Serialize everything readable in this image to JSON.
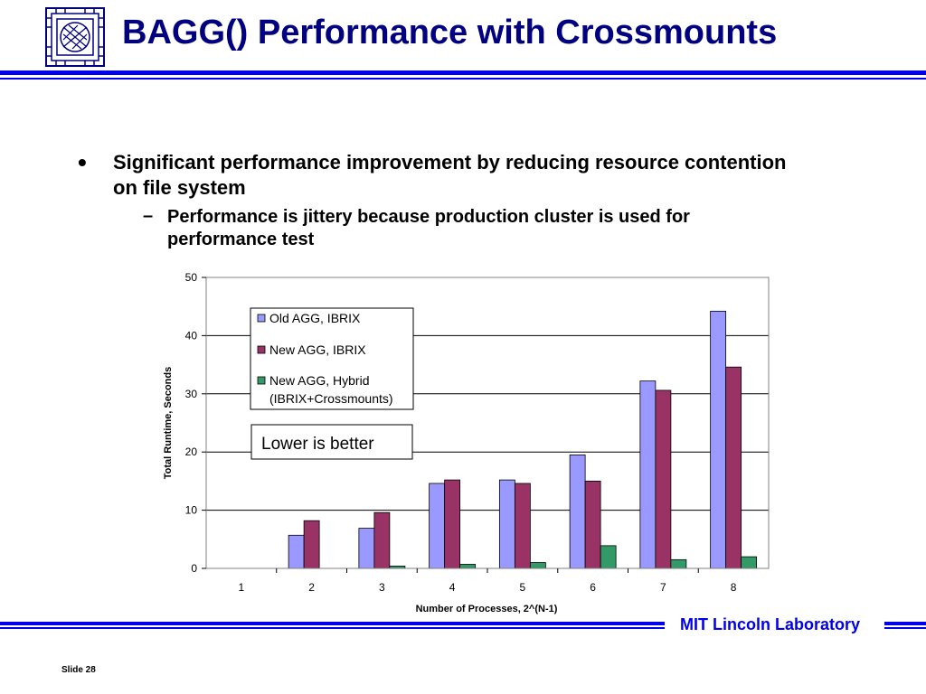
{
  "slide": {
    "title": "BAGG() Performance with Crossmounts",
    "footer_lab": "MIT Lincoln Laboratory",
    "slide_number": "Slide 28",
    "colors": {
      "title": "#000080",
      "rule": "#0000ee"
    }
  },
  "bullets": [
    {
      "glyph": "•",
      "text": "Significant performance improvement by reducing resource contention on file system",
      "sub": [
        {
          "glyph": "–",
          "text": "Performance is jittery because production cluster is used for performance test"
        }
      ]
    }
  ],
  "chart_data": {
    "type": "bar",
    "categories": [
      "1",
      "2",
      "3",
      "4",
      "5",
      "6",
      "7",
      "8"
    ],
    "series": [
      {
        "name": "Old AGG, IBRIX",
        "color": "#9999ff",
        "values": [
          0,
          5.7,
          6.9,
          14.6,
          15.2,
          19.5,
          32.2,
          44.2
        ]
      },
      {
        "name": "New AGG, IBRIX",
        "color": "#993366",
        "values": [
          0,
          8.2,
          9.6,
          15.2,
          14.6,
          15.0,
          30.6,
          34.6
        ]
      },
      {
        "name": "New AGG, Hybrid (IBRIX+Crossmounts)",
        "color": "#339966",
        "values": [
          0,
          0,
          0.4,
          0.7,
          1.0,
          3.9,
          1.5,
          2.0
        ]
      }
    ],
    "xlabel": "Number of Processes, 2^(N-1)",
    "ylabel": "Total Runtime, Seconds",
    "ylim": [
      0,
      50
    ],
    "yticks": [
      "0",
      "10",
      "20",
      "30",
      "40",
      "50"
    ],
    "grid": true,
    "legend_position": "top-left",
    "legend_labels": [
      "Old AGG, IBRIX",
      "New AGG, IBRIX",
      "New AGG, Hybrid",
      "(IBRIX+Crossmounts)"
    ],
    "annotation": "Lower is better"
  }
}
